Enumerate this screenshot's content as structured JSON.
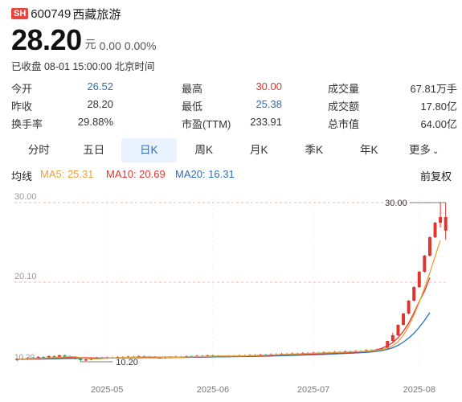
{
  "header": {
    "exchange": "SH",
    "code": "600749",
    "name": "西藏旅游"
  },
  "quote": {
    "price": "28.20",
    "unit": "元",
    "change": "0.00",
    "change_pct": "0.00%"
  },
  "status": "已收盘 08-01 15:00:00 北京时间",
  "stats": [
    [
      {
        "label": "今开",
        "value": "26.52"
      },
      {
        "label": "最高",
        "value": "30.00"
      },
      {
        "label": "成交量",
        "value": "67.81万手"
      }
    ],
    [
      {
        "label": "昨收",
        "value": "28.20"
      },
      {
        "label": "最低",
        "value": "25.38"
      },
      {
        "label": "成交额",
        "value": "17.80亿"
      }
    ],
    [
      {
        "label": "换手率",
        "value": "29.88%"
      },
      {
        "label": "市盈(TTM)",
        "value": "233.91"
      },
      {
        "label": "总市值",
        "value": "64.00亿"
      }
    ]
  ],
  "tabs": [
    "分时",
    "五日",
    "日K",
    "周K",
    "月K",
    "季K",
    "年K",
    "更多"
  ],
  "active_tab": 2,
  "ma": {
    "label": "均线",
    "ma5": "MA5: 25.31",
    "ma10": "MA10: 20.69",
    "ma20": "MA20: 16.31",
    "adjust": "前复权"
  },
  "colors": {
    "up": "#e0342f",
    "down": "#2aa85a",
    "ma5": "#e6a23c",
    "ma10": "#e0342f",
    "ma20": "#2d6fb7",
    "accent": "#2d6fb7"
  },
  "chart_data": {
    "type": "candlestick",
    "y_ticks": [
      "30.00",
      "20.10"
    ],
    "ylim": [
      9.4,
      30.8
    ],
    "x_ticks": [
      "2025-05",
      "2025-06",
      "2025-07",
      "2025-08"
    ],
    "x_tick_index": [
      17,
      37,
      56,
      76
    ],
    "high_annotation": "30.00",
    "low_annotation": "10.20",
    "low_annotation_left": "10.20",
    "candles": [
      [
        10.4,
        10.6,
        10.3,
        10.7,
        1
      ],
      [
        10.6,
        10.5,
        10.4,
        10.8,
        0
      ],
      [
        10.5,
        10.7,
        10.4,
        10.8,
        1
      ],
      [
        10.7,
        10.6,
        10.5,
        10.8,
        0
      ],
      [
        10.6,
        10.8,
        10.5,
        10.9,
        1
      ],
      [
        10.8,
        10.7,
        10.6,
        10.9,
        0
      ],
      [
        10.7,
        10.9,
        10.6,
        11.0,
        1
      ],
      [
        10.9,
        10.8,
        10.7,
        11.0,
        0
      ],
      [
        10.8,
        11.0,
        10.7,
        11.1,
        1
      ],
      [
        11.0,
        10.9,
        10.8,
        11.1,
        0
      ],
      [
        10.9,
        10.8,
        10.7,
        11.0,
        0
      ],
      [
        10.8,
        10.6,
        10.5,
        10.9,
        0
      ],
      [
        10.6,
        10.4,
        10.2,
        10.7,
        0
      ],
      [
        10.4,
        10.5,
        10.3,
        10.6,
        1
      ],
      [
        10.5,
        10.6,
        10.4,
        10.7,
        1
      ],
      [
        10.6,
        10.7,
        10.5,
        10.8,
        1
      ],
      [
        10.7,
        10.65,
        10.55,
        10.8,
        0
      ],
      [
        10.65,
        10.75,
        10.55,
        10.85,
        1
      ],
      [
        10.75,
        10.7,
        10.6,
        10.85,
        0
      ],
      [
        10.7,
        10.8,
        10.6,
        10.9,
        1
      ],
      [
        10.8,
        10.75,
        10.65,
        10.9,
        0
      ],
      [
        10.75,
        10.85,
        10.65,
        10.95,
        1
      ],
      [
        10.85,
        10.8,
        10.7,
        10.95,
        0
      ],
      [
        10.8,
        10.9,
        10.7,
        11.0,
        1
      ],
      [
        10.9,
        10.85,
        10.75,
        11.0,
        0
      ],
      [
        10.85,
        10.8,
        10.7,
        10.95,
        0
      ],
      [
        10.8,
        10.75,
        10.65,
        10.9,
        0
      ],
      [
        10.75,
        10.7,
        10.6,
        10.85,
        0
      ],
      [
        10.7,
        10.8,
        10.6,
        10.9,
        1
      ],
      [
        10.8,
        10.75,
        10.65,
        10.9,
        0
      ],
      [
        10.75,
        10.85,
        10.65,
        10.95,
        1
      ],
      [
        10.85,
        10.8,
        10.7,
        10.95,
        0
      ],
      [
        10.8,
        10.9,
        10.7,
        11.0,
        1
      ],
      [
        10.9,
        10.85,
        10.75,
        11.0,
        0
      ],
      [
        10.85,
        10.95,
        10.75,
        11.05,
        1
      ],
      [
        10.95,
        10.9,
        10.8,
        11.05,
        0
      ],
      [
        10.9,
        11.0,
        10.8,
        11.1,
        1
      ],
      [
        11.0,
        10.95,
        10.85,
        11.1,
        0
      ],
      [
        10.95,
        10.9,
        10.8,
        11.05,
        0
      ],
      [
        10.9,
        10.85,
        10.75,
        11.0,
        0
      ],
      [
        10.85,
        10.95,
        10.75,
        11.05,
        1
      ],
      [
        10.95,
        10.9,
        10.8,
        11.05,
        0
      ],
      [
        10.9,
        11.0,
        10.8,
        11.1,
        1
      ],
      [
        11.0,
        10.95,
        10.85,
        11.1,
        0
      ],
      [
        10.95,
        11.05,
        10.85,
        11.15,
        1
      ],
      [
        11.05,
        11.0,
        10.9,
        11.15,
        0
      ],
      [
        11.0,
        11.1,
        10.9,
        11.2,
        1
      ],
      [
        11.1,
        11.05,
        10.95,
        11.2,
        0
      ],
      [
        11.05,
        11.15,
        10.95,
        11.25,
        1
      ],
      [
        11.15,
        11.1,
        11.0,
        11.25,
        0
      ],
      [
        11.1,
        11.2,
        11.0,
        11.3,
        1
      ],
      [
        11.2,
        11.15,
        11.05,
        11.3,
        0
      ],
      [
        11.15,
        11.25,
        11.05,
        11.35,
        1
      ],
      [
        11.25,
        11.2,
        11.1,
        11.35,
        0
      ],
      [
        11.2,
        11.3,
        11.1,
        11.4,
        1
      ],
      [
        11.3,
        11.25,
        11.15,
        11.4,
        0
      ],
      [
        11.25,
        11.35,
        11.15,
        11.45,
        1
      ],
      [
        11.35,
        11.3,
        11.2,
        11.45,
        0
      ],
      [
        11.3,
        11.4,
        11.2,
        11.5,
        1
      ],
      [
        11.4,
        11.35,
        11.25,
        11.5,
        0
      ],
      [
        11.35,
        11.45,
        11.25,
        11.55,
        1
      ],
      [
        11.45,
        11.4,
        11.3,
        11.55,
        0
      ],
      [
        11.4,
        11.5,
        11.3,
        11.6,
        1
      ],
      [
        11.5,
        11.45,
        11.35,
        11.6,
        0
      ],
      [
        11.45,
        11.55,
        11.35,
        11.65,
        1
      ],
      [
        11.55,
        11.5,
        11.4,
        11.65,
        0
      ],
      [
        11.5,
        11.65,
        11.4,
        11.75,
        1
      ],
      [
        11.65,
        11.6,
        11.5,
        11.75,
        0
      ],
      [
        11.6,
        11.75,
        11.5,
        11.85,
        1
      ],
      [
        11.75,
        11.85,
        11.65,
        11.95,
        1
      ],
      [
        11.85,
        12.8,
        11.8,
        12.8,
        1
      ],
      [
        12.8,
        13.5,
        12.6,
        13.8,
        1
      ],
      [
        13.5,
        14.8,
        13.4,
        14.85,
        1
      ],
      [
        14.8,
        16.2,
        14.7,
        16.3,
        1
      ],
      [
        16.2,
        17.8,
        16.1,
        17.9,
        1
      ],
      [
        17.8,
        19.5,
        17.7,
        19.6,
        1
      ],
      [
        19.5,
        21.4,
        19.4,
        21.5,
        1
      ],
      [
        21.4,
        23.4,
        21.3,
        23.5,
        1
      ],
      [
        23.4,
        25.7,
        23.3,
        25.8,
        1
      ],
      [
        25.7,
        27.5,
        25.6,
        27.6,
        1
      ],
      [
        27.5,
        28.2,
        26.9,
        30.0,
        1
      ],
      [
        26.52,
        28.2,
        25.38,
        30.0,
        1
      ]
    ],
    "ma5": [
      10.5,
      10.55,
      10.6,
      10.62,
      10.64,
      10.66,
      10.7,
      10.74,
      10.78,
      10.8,
      10.84,
      10.82,
      10.7,
      10.62,
      10.58,
      10.56,
      10.6,
      10.64,
      10.68,
      10.7,
      10.72,
      10.74,
      10.76,
      10.78,
      10.8,
      10.82,
      10.8,
      10.78,
      10.76,
      10.76,
      10.76,
      10.78,
      10.8,
      10.82,
      10.84,
      10.86,
      10.88,
      10.9,
      10.92,
      10.92,
      10.92,
      10.92,
      10.93,
      10.94,
      10.96,
      10.98,
      11.0,
      11.03,
      11.06,
      11.08,
      11.1,
      11.13,
      11.16,
      11.18,
      11.2,
      11.23,
      11.26,
      11.28,
      11.3,
      11.33,
      11.36,
      11.38,
      11.4,
      11.43,
      11.46,
      11.48,
      11.52,
      11.56,
      11.62,
      11.72,
      11.9,
      12.2,
      12.7,
      13.5,
      14.6,
      16.0,
      17.6,
      19.4,
      21.3,
      23.3,
      25.31
    ],
    "ma10": [
      10.5,
      10.52,
      10.55,
      10.58,
      10.6,
      10.62,
      10.64,
      10.66,
      10.68,
      10.7,
      10.72,
      10.73,
      10.72,
      10.7,
      10.68,
      10.66,
      10.65,
      10.66,
      10.67,
      10.68,
      10.69,
      10.7,
      10.71,
      10.72,
      10.73,
      10.74,
      10.75,
      10.76,
      10.77,
      10.78,
      10.78,
      10.79,
      10.8,
      10.81,
      10.82,
      10.83,
      10.84,
      10.86,
      10.87,
      10.88,
      10.89,
      10.9,
      10.91,
      10.93,
      10.94,
      10.96,
      10.98,
      11.0,
      11.02,
      11.04,
      11.06,
      11.08,
      11.1,
      11.12,
      11.14,
      11.16,
      11.18,
      11.2,
      11.22,
      11.24,
      11.27,
      11.3,
      11.33,
      11.36,
      11.4,
      11.44,
      11.5,
      11.58,
      11.7,
      11.9,
      12.2,
      12.6,
      13.2,
      14.0,
      15.0,
      16.3,
      17.7,
      19.0,
      20.69
    ],
    "ma20": [
      10.5,
      10.51,
      10.52,
      10.53,
      10.54,
      10.55,
      10.56,
      10.58,
      10.6,
      10.61,
      10.62,
      10.63,
      10.64,
      10.65,
      10.66,
      10.66,
      10.67,
      10.67,
      10.68,
      10.68,
      10.69,
      10.69,
      10.7,
      10.7,
      10.71,
      10.71,
      10.72,
      10.72,
      10.73,
      10.73,
      10.74,
      10.74,
      10.75,
      10.76,
      10.77,
      10.78,
      10.79,
      10.8,
      10.81,
      10.82,
      10.83,
      10.84,
      10.85,
      10.86,
      10.87,
      10.88,
      10.89,
      10.9,
      10.92,
      10.94,
      10.96,
      10.98,
      11.0,
      11.02,
      11.04,
      11.06,
      11.08,
      11.1,
      11.12,
      11.15,
      11.18,
      11.21,
      11.24,
      11.27,
      11.3,
      11.34,
      11.38,
      11.43,
      11.5,
      11.6,
      11.75,
      11.95,
      12.25,
      12.65,
      13.15,
      13.75,
      14.5,
      15.35,
      16.31
    ]
  }
}
